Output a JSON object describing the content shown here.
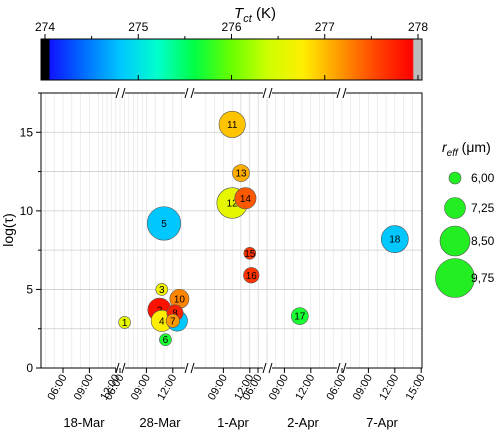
{
  "chart_data": {
    "type": "scatter",
    "colorbar": {
      "label_main": "T",
      "label_sub": "ct",
      "label_unit": " (K)",
      "ticks": [
        274,
        275,
        276,
        277,
        278
      ],
      "range": [
        274,
        278
      ],
      "stops": [
        "#000000",
        "#1010ff",
        "#0070ff",
        "#00c8ff",
        "#00ffcc",
        "#00ff44",
        "#66ff00",
        "#ccff00",
        "#ffee00",
        "#ff9900",
        "#ff4400",
        "#ff0000",
        "#bbbbbb"
      ]
    },
    "ylabel": "log(τ)",
    "ylim": [
      0,
      17.5
    ],
    "yticks": [
      0,
      5,
      10,
      15
    ],
    "xtick_labels": [
      "06:00",
      "09:00",
      "12:00",
      "06:00",
      "09:00",
      "12:00",
      "09:00",
      "12:00",
      "06:00",
      "09:00",
      "12:00",
      "06:00",
      "09:00",
      "12:00",
      "15:00"
    ],
    "date_labels": [
      "18-Mar",
      "28-Mar",
      "1-Apr",
      "2-Apr",
      "7-Apr"
    ],
    "legend": {
      "title_main": "r",
      "title_sub": "eff",
      "title_unit": " (μm)",
      "entries": [
        "6,00",
        "7,25",
        "8,50",
        "9,75"
      ],
      "values": [
        6.0,
        7.25,
        8.5,
        9.75
      ],
      "color": "#22ee22"
    },
    "points": [
      {
        "id": "1",
        "date": "18-Mar",
        "time": "13:00",
        "y": 2.9,
        "tct": 276.6,
        "reff": 6.0
      },
      {
        "id": "2",
        "date": "28-Mar",
        "time": "10:30",
        "y": 3.7,
        "tct": 277.9,
        "reff": 7.6
      },
      {
        "id": "3",
        "date": "28-Mar",
        "time": "10:45",
        "y": 5.0,
        "tct": 276.7,
        "reff": 6.0
      },
      {
        "id": "4",
        "date": "28-Mar",
        "time": "10:45",
        "y": 3.0,
        "tct": 276.8,
        "reff": 7.3
      },
      {
        "id": "5",
        "date": "28-Mar",
        "time": "11:00",
        "y": 9.2,
        "tct": 274.8,
        "reff": 9.0
      },
      {
        "id": "6",
        "date": "28-Mar",
        "time": "11:10",
        "y": 1.8,
        "tct": 275.7,
        "reff": 6.0
      },
      {
        "id": "7",
        "date": "28-Mar",
        "time": "12:00",
        "y": 3.0,
        "tct": 277.2,
        "reff": 6.2
      },
      {
        "id": "8",
        "date": "28-Mar",
        "time": "12:15",
        "y": 3.5,
        "tct": 277.8,
        "reff": 6.6
      },
      {
        "id": "9",
        "date": "28-Mar",
        "time": "12:30",
        "y": 3.0,
        "tct": 274.8,
        "reff": 7.2
      },
      {
        "id": "10",
        "date": "28-Mar",
        "time": "12:45",
        "y": 4.4,
        "tct": 277.3,
        "reff": 7.0
      },
      {
        "id": "11",
        "date": "1-Apr",
        "time": "10:00",
        "y": 15.5,
        "tct": 277.0,
        "reff": 8.0
      },
      {
        "id": "12",
        "date": "1-Apr",
        "time": "10:00",
        "y": 10.5,
        "tct": 276.6,
        "reff": 8.6
      },
      {
        "id": "13",
        "date": "1-Apr",
        "time": "11:00",
        "y": 12.4,
        "tct": 277.1,
        "reff": 6.7
      },
      {
        "id": "14",
        "date": "1-Apr",
        "time": "11:30",
        "y": 10.8,
        "tct": 277.5,
        "reff": 7.3
      },
      {
        "id": "15",
        "date": "1-Apr",
        "time": "12:00",
        "y": 7.3,
        "tct": 277.7,
        "reff": 6.0
      },
      {
        "id": "16",
        "date": "1-Apr",
        "time": "12:10",
        "y": 5.9,
        "tct": 277.7,
        "reff": 6.5
      },
      {
        "id": "17",
        "date": "2-Apr",
        "time": "10:45",
        "y": 3.3,
        "tct": 275.7,
        "reff": 6.7
      },
      {
        "id": "18",
        "date": "7-Apr",
        "time": "12:00",
        "y": 8.2,
        "tct": 274.8,
        "reff": 8.1
      }
    ]
  }
}
